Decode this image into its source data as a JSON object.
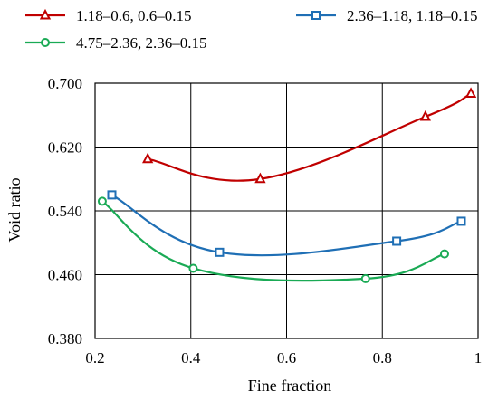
{
  "chart_data": {
    "type": "line",
    "title": "",
    "xlabel": "Fine fraction",
    "ylabel": "Void ratio",
    "xlim": [
      0.2,
      1.0
    ],
    "ylim": [
      0.38,
      0.7
    ],
    "xticks": [
      0.2,
      0.4,
      0.6,
      0.8,
      1.0
    ],
    "xtick_labels": [
      "0.2",
      "0.4",
      "0.6",
      "0.8",
      "1"
    ],
    "yticks": [
      0.38,
      0.46,
      0.54,
      0.62,
      0.7
    ],
    "ytick_labels": [
      "0.380",
      "0.460",
      "0.540",
      "0.620",
      "0.700"
    ],
    "grid": true,
    "legend_position": "top",
    "series": [
      {
        "name": "1.18–0.6, 0.6–0.15",
        "color": "#c00000",
        "marker": "triangle",
        "x": [
          0.31,
          0.545,
          0.89,
          0.985
        ],
        "y": [
          0.605,
          0.58,
          0.658,
          0.687
        ]
      },
      {
        "name": "2.36–1.18, 1.18–0.15",
        "color": "#1f6fb5",
        "marker": "square",
        "x": [
          0.235,
          0.46,
          0.83,
          0.965
        ],
        "y": [
          0.56,
          0.488,
          0.502,
          0.527
        ]
      },
      {
        "name": "4.75–2.36, 2.36–0.15",
        "color": "#1aaa55",
        "marker": "circle",
        "x": [
          0.215,
          0.405,
          0.765,
          0.93
        ],
        "y": [
          0.552,
          0.468,
          0.455,
          0.486
        ]
      }
    ]
  }
}
